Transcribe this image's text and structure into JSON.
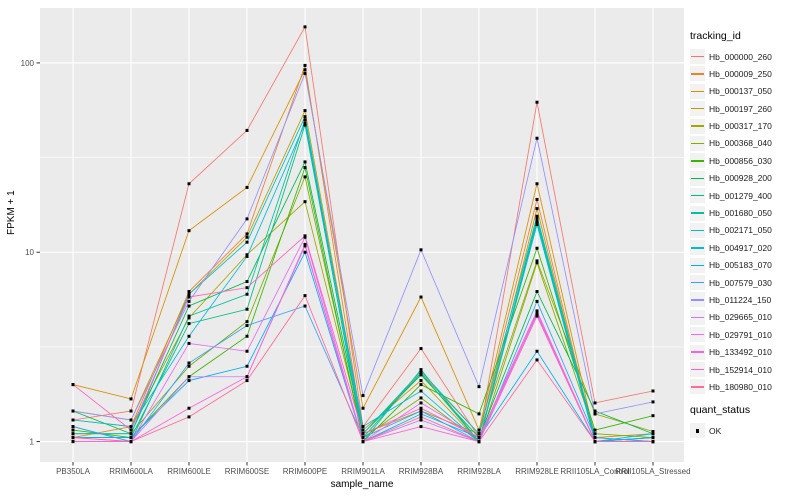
{
  "figure": {
    "panel_background": "#EBEBEB",
    "grid_color": "#FFFFFF",
    "tick_color": "#333333",
    "tick_label_color": "#4D4D4D",
    "point_color": "#000000",
    "legend_key_fill": "#F2F2F2"
  },
  "chart_data": {
    "type": "line",
    "title": "",
    "xlabel": "sample_name",
    "ylabel": "FPKM + 1",
    "y_scale": "log10",
    "y_ticks": [
      1,
      10,
      100
    ],
    "y_tick_labels": [
      "1",
      "10",
      "100"
    ],
    "y_minor_ticks": [
      3.162,
      31.62
    ],
    "ylim": [
      0.78,
      195
    ],
    "grid": true,
    "legend_position": "right",
    "categories": [
      "PB350LA",
      "RRIM600LA",
      "RRIM600LE",
      "RRIM600SE",
      "RRIM600PE",
      "RRIM901LA",
      "RRIM928BA",
      "RRIM928LA",
      "RRIM928LE",
      "RRII105LA_Control",
      "RRII105LA_Stressed"
    ],
    "legend_title": "tracking_id",
    "series": [
      {
        "name": "Hb_000000_260",
        "color": "#F8766D",
        "values": [
          1.3,
          1.45,
          23,
          44,
          155,
          1.2,
          3.1,
          1.05,
          62,
          1.6,
          1.85
        ]
      },
      {
        "name": "Hb_000009_250",
        "color": "#EA8331",
        "values": [
          1.05,
          1.2,
          6.2,
          12.5,
          97,
          1.1,
          2.3,
          1.1,
          19,
          1.0,
          1.0
        ]
      },
      {
        "name": "Hb_000137_050",
        "color": "#D89000",
        "values": [
          2.0,
          1.68,
          13,
          22,
          92,
          1.5,
          5.8,
          1.15,
          23,
          1.05,
          1.1
        ]
      },
      {
        "name": "Hb_000197_260",
        "color": "#C09B00",
        "values": [
          1.45,
          1.3,
          6.0,
          12,
          56,
          1.15,
          2.1,
          1.0,
          17,
          1.0,
          1.05
        ]
      },
      {
        "name": "Hb_000317_170",
        "color": "#A3A500",
        "values": [
          1.3,
          1.2,
          4.5,
          9.7,
          18.5,
          1.1,
          1.45,
          1.1,
          9.0,
          1.4,
          1.13
        ]
      },
      {
        "name": "Hb_000368_040",
        "color": "#7CAE00",
        "values": [
          1.1,
          1.1,
          2.5,
          4.3,
          25,
          1.05,
          1.7,
          1.0,
          8.8,
          1.1,
          1.05
        ]
      },
      {
        "name": "Hb_000856_030",
        "color": "#39B600",
        "values": [
          1.15,
          1.05,
          2.2,
          3.6,
          28,
          1.0,
          2.0,
          1.4,
          10.5,
          1.15,
          1.37
        ]
      },
      {
        "name": "Hb_000928_200",
        "color": "#00BB4E",
        "values": [
          1.45,
          1.1,
          5.2,
          7.0,
          30,
          1.1,
          2.25,
          1.05,
          6.2,
          1.45,
          1.1
        ]
      },
      {
        "name": "Hb_001279_400",
        "color": "#00BF7D",
        "values": [
          1.05,
          1.05,
          4.2,
          5.0,
          47,
          1.05,
          2.3,
          1.0,
          15,
          1.0,
          1.0
        ]
      },
      {
        "name": "Hb_001680_050",
        "color": "#00C1A3",
        "values": [
          1.2,
          1.0,
          4.6,
          6.0,
          50,
          1.0,
          2.4,
          1.0,
          14.5,
          1.0,
          1.05
        ]
      },
      {
        "name": "Hb_002171_050",
        "color": "#00BFC4",
        "values": [
          1.1,
          1.1,
          6.0,
          11.3,
          52,
          1.1,
          2.35,
          1.1,
          15.5,
          1.05,
          1.0
        ]
      },
      {
        "name": "Hb_004917_020",
        "color": "#00BAE0",
        "values": [
          1.3,
          1.2,
          3.6,
          9.5,
          48,
          1.2,
          1.85,
          1.0,
          14,
          1.0,
          1.1
        ]
      },
      {
        "name": "Hb_005183_070",
        "color": "#00B0F6",
        "values": [
          1.05,
          1.05,
          2.1,
          2.5,
          10,
          1.0,
          1.4,
          1.05,
          3.0,
          1.0,
          1.05
        ]
      },
      {
        "name": "Hb_007579_030",
        "color": "#35A2FF",
        "values": [
          1.2,
          1.0,
          2.6,
          4.1,
          5.2,
          1.05,
          1.45,
          1.0,
          5.5,
          1.05,
          1.0
        ]
      },
      {
        "name": "Hb_011224_150",
        "color": "#9590FF",
        "values": [
          1.45,
          1.3,
          5.5,
          15,
          88,
          1.75,
          10.3,
          1.95,
          40,
          1.4,
          1.62
        ]
      },
      {
        "name": "Hb_029665_010",
        "color": "#C77CFF",
        "values": [
          1.05,
          1.0,
          2.2,
          2.2,
          11,
          1.0,
          1.3,
          1.0,
          4.8,
          1.0,
          1.0
        ]
      },
      {
        "name": "Hb_029791_010",
        "color": "#E76BF3",
        "values": [
          1.0,
          1.0,
          3.3,
          3.0,
          12,
          1.0,
          1.6,
          1.05,
          4.9,
          1.0,
          1.0
        ]
      },
      {
        "name": "Hb_133492_010",
        "color": "#FA62DB",
        "values": [
          1.0,
          1.0,
          1.5,
          2.2,
          10.8,
          1.0,
          1.2,
          1.0,
          4.6,
          1.0,
          1.0
        ]
      },
      {
        "name": "Hb_152914_010",
        "color": "#FF62BC",
        "values": [
          2.0,
          1.15,
          5.8,
          6.5,
          12.2,
          1.1,
          1.5,
          1.05,
          4.7,
          1.0,
          1.0
        ]
      },
      {
        "name": "Hb_180980_010",
        "color": "#FF6A98",
        "values": [
          1.05,
          1.0,
          1.35,
          2.1,
          5.9,
          1.0,
          1.35,
          1.0,
          2.7,
          1.0,
          1.0
        ]
      }
    ],
    "legend2_title": "quant_status",
    "legend2_items": [
      {
        "label": "OK",
        "marker": "black-square"
      }
    ]
  }
}
